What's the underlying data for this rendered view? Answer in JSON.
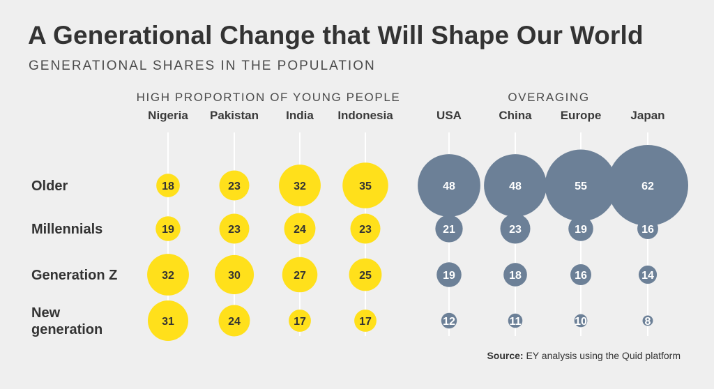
{
  "header": {
    "title": "A Generational Change that Will Shape Our World",
    "subtitle": "GENERATIONAL SHARES IN THE POPULATION"
  },
  "chart_data": {
    "type": "bubble-matrix",
    "title": "A Generational Change that Will Shape Our World",
    "subtitle": "GENERATIONAL SHARES IN THE POPULATION",
    "groups": [
      {
        "label": "HIGH PROPORTION OF YOUNG PEOPLE",
        "columns": [
          "Nigeria",
          "Pakistan",
          "India",
          "Indonesia"
        ],
        "color": "#ffe01b"
      },
      {
        "label": "OVERAGING",
        "columns": [
          "USA",
          "China",
          "Europe",
          "Japan"
        ],
        "color": "#6c8097"
      }
    ],
    "columns": [
      "Nigeria",
      "Pakistan",
      "India",
      "Indonesia",
      "USA",
      "China",
      "Europe",
      "Japan"
    ],
    "rows": [
      {
        "label_lines": [
          "Older"
        ],
        "values": [
          18,
          23,
          32,
          35,
          48,
          48,
          55,
          62
        ]
      },
      {
        "label_lines": [
          "Millennials"
        ],
        "values": [
          19,
          23,
          24,
          23,
          21,
          23,
          19,
          16
        ]
      },
      {
        "label_lines": [
          "Generation Z"
        ],
        "values": [
          32,
          30,
          27,
          25,
          19,
          18,
          16,
          14
        ]
      },
      {
        "label_lines": [
          "New",
          "generation"
        ],
        "values": [
          31,
          24,
          17,
          17,
          12,
          11,
          10,
          8
        ]
      }
    ],
    "colors": {
      "young": "#ffe01b",
      "overaging": "#6c8097",
      "line": "#ffffff",
      "young_text": "#333333",
      "overaging_text": "#ffffff"
    }
  },
  "source": {
    "prefix": "Source:",
    "text": " EY analysis using the Quid platform"
  }
}
